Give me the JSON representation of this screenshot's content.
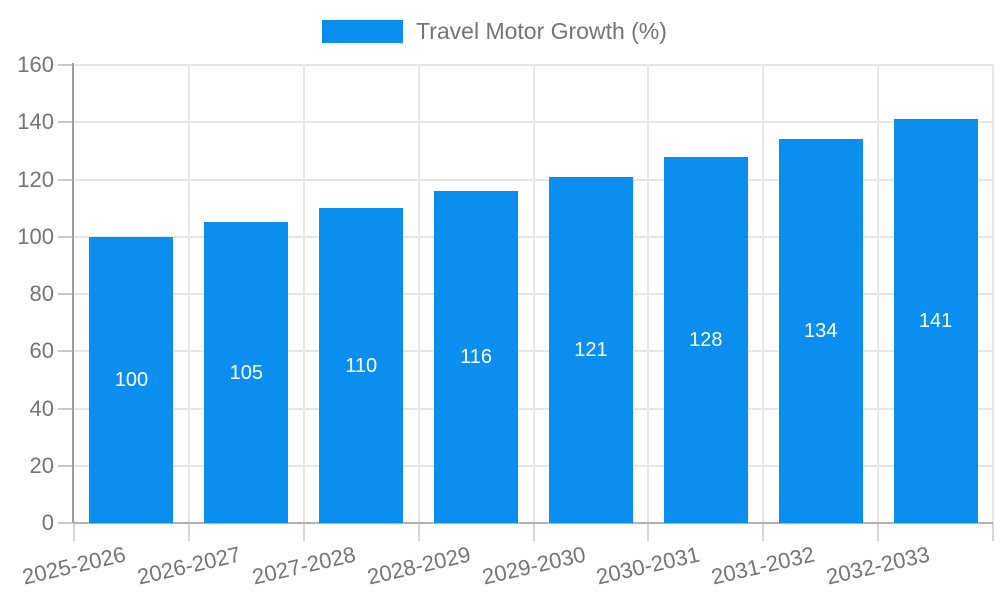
{
  "legend": {
    "label": "Travel Motor Growth (%)"
  },
  "chart_data": {
    "type": "bar",
    "title": "",
    "xlabel": "",
    "ylabel": "",
    "series_name": "Travel Motor Growth (%)",
    "categories": [
      "2025-2026",
      "2026-2027",
      "2027-2028",
      "2028-2029",
      "2029-2030",
      "2030-2031",
      "2031-2032",
      "2032-2033"
    ],
    "values": [
      100,
      105,
      110,
      116,
      121,
      128,
      134,
      141
    ],
    "ylim": [
      0,
      160
    ],
    "ytick_step": 20,
    "ytick_labels": [
      "0",
      "20",
      "40",
      "60",
      "80",
      "100",
      "120",
      "140",
      "160"
    ],
    "grid": true,
    "legend_position": "top",
    "bar_color": "#0a8ff0",
    "value_label_color": "#ffffff",
    "axis_text_color": "#757575"
  }
}
